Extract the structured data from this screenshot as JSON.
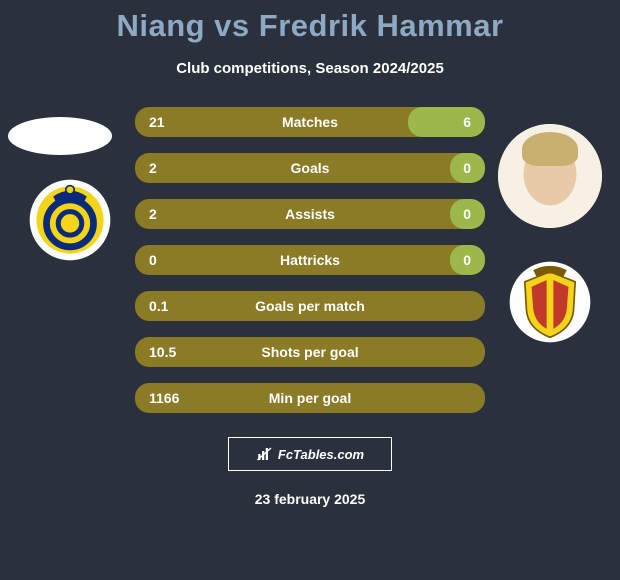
{
  "title": "Niang vs Fredrik Hammar",
  "subtitle": "Club competitions, Season 2024/2025",
  "date_text": "23 february 2025",
  "branding": "FcTables.com",
  "colors": {
    "background": "#2a303c",
    "title": "#8da9c4",
    "text": "#ffffff",
    "bar_base": "#8b7a26",
    "bar_right": "#9cb84a"
  },
  "player_left": {
    "name": "Niang",
    "club_crest_colors": {
      "outer": "#f4d419",
      "ring": "#0a2a7a",
      "inner": "#ffffff"
    }
  },
  "player_right": {
    "name": "Fredrik Hammar",
    "club_crest_colors": {
      "outer": "#f4d419",
      "shield": "#c0392b",
      "stripe": "#111111"
    }
  },
  "bars": [
    {
      "label": "Matches",
      "left": "21",
      "right": "6",
      "right_pct": 22
    },
    {
      "label": "Goals",
      "left": "2",
      "right": "0",
      "right_pct": 10
    },
    {
      "label": "Assists",
      "left": "2",
      "right": "0",
      "right_pct": 10
    },
    {
      "label": "Hattricks",
      "left": "0",
      "right": "0",
      "right_pct": 10
    },
    {
      "label": "Goals per match",
      "left": "0.1",
      "right": "",
      "right_pct": 0
    },
    {
      "label": "Shots per goal",
      "left": "10.5",
      "right": "",
      "right_pct": 0
    },
    {
      "label": "Min per goal",
      "left": "1166",
      "right": "",
      "right_pct": 0
    }
  ]
}
